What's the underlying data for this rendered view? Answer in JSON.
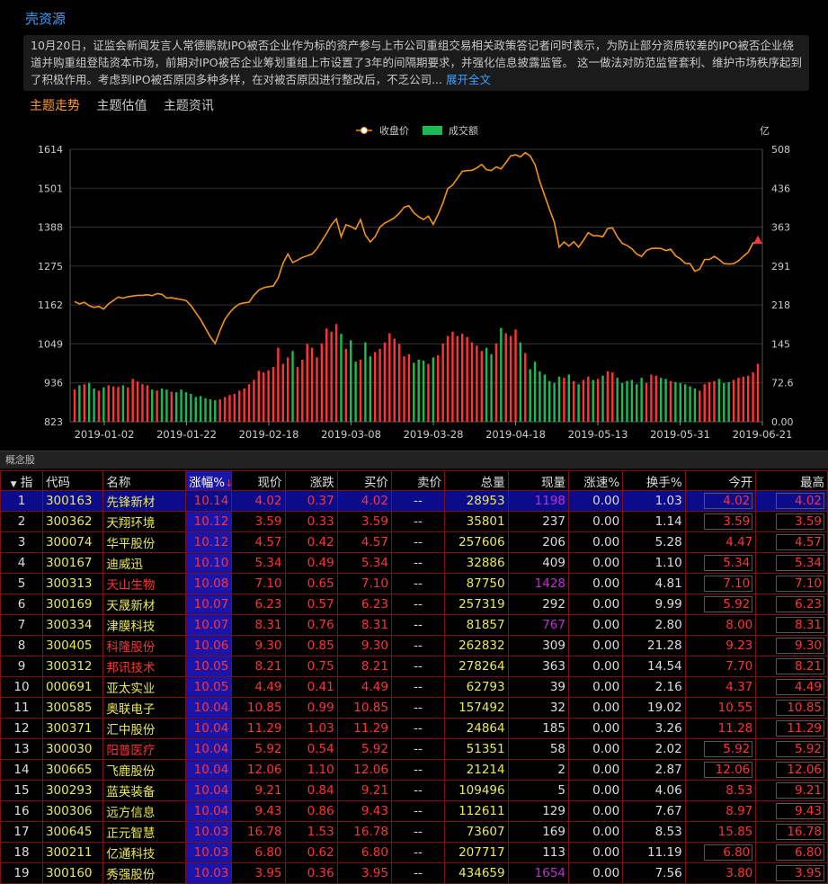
{
  "header": {
    "title": "壳资源",
    "news_text": "10月20日，证监会新闻发言人常德鹏就IPO被否企业作为标的资产参与上市公司重组交易相关政策答记者问时表示，为防止部分资质较差的IPO被否企业绕道并购重组登陆资本市场，前期对IPO被否企业筹划重组上市设置了3年的间隔期要求，并强化信息披露监管。 这一做法对防范监管套利、维护市场秩序起到了积极作用。考虑到IPO被否原因多种多样，在对被否原因进行整改后，不乏公司...",
    "news_more": "展开全文"
  },
  "tabs": [
    "主题走势",
    "主题估值",
    "主题资讯"
  ],
  "colors": {
    "price_line": "#f0921e",
    "up": "#ff3333",
    "down": "#1db954",
    "accent": "#3aa0ff"
  },
  "chart_data": {
    "type": "line",
    "legend": {
      "price": "收盘价",
      "volume": "成交额"
    },
    "y_left_ticks": [
      "1614",
      "1501",
      "1388",
      "1275",
      "1162",
      "1049",
      "936",
      "823"
    ],
    "y_right_unit": "亿",
    "y_right_ticks": [
      "508",
      "436",
      "363",
      "291",
      "218",
      "145",
      "72.6",
      "0.00"
    ],
    "x_ticks": [
      "2019-01-02",
      "2019-01-22",
      "2019-02-18",
      "2019-03-08",
      "2019-03-28",
      "2019-04-18",
      "2019-05-13",
      "2019-05-31",
      "2019-06-21"
    ],
    "ylim_price": [
      823,
      1614
    ],
    "ylim_volume": [
      0,
      508
    ],
    "price": [
      1172,
      1165,
      1170,
      1160,
      1155,
      1158,
      1150,
      1165,
      1175,
      1185,
      1182,
      1186,
      1188,
      1190,
      1190,
      1192,
      1189,
      1195,
      1193,
      1182,
      1183,
      1180,
      1178,
      1175,
      1160,
      1140,
      1120,
      1095,
      1070,
      1050,
      1088,
      1120,
      1140,
      1155,
      1165,
      1168,
      1170,
      1190,
      1205,
      1212,
      1215,
      1217,
      1240,
      1283,
      1310,
      1285,
      1292,
      1300,
      1305,
      1310,
      1325,
      1348,
      1370,
      1395,
      1412,
      1360,
      1395,
      1390,
      1382,
      1410,
      1365,
      1345,
      1360,
      1388,
      1400,
      1407,
      1415,
      1428,
      1446,
      1450,
      1430,
      1418,
      1410,
      1420,
      1396,
      1425,
      1458,
      1500,
      1510,
      1530,
      1550,
      1552,
      1553,
      1560,
      1570,
      1555,
      1552,
      1563,
      1557,
      1575,
      1595,
      1598,
      1592,
      1604,
      1595,
      1570,
      1520,
      1480,
      1440,
      1402,
      1330,
      1345,
      1333,
      1346,
      1330,
      1350,
      1372,
      1363,
      1363,
      1360,
      1384,
      1386,
      1360,
      1341,
      1335,
      1325,
      1310,
      1303,
      1320,
      1326,
      1327,
      1326,
      1320,
      1324,
      1305,
      1296,
      1283,
      1282,
      1260,
      1266,
      1294,
      1294,
      1303,
      1294,
      1282,
      1281,
      1282,
      1290,
      1303,
      1315,
      1342,
      1345
    ],
    "volume": [
      60,
      68,
      70,
      72,
      62,
      58,
      64,
      68,
      66,
      65,
      68,
      64,
      80,
      75,
      70,
      68,
      60,
      58,
      62,
      60,
      56,
      55,
      60,
      55,
      52,
      46,
      48,
      44,
      42,
      40,
      42,
      46,
      50,
      52,
      58,
      62,
      70,
      78,
      95,
      92,
      96,
      102,
      138,
      108,
      120,
      132,
      102,
      116,
      145,
      138,
      120,
      146,
      174,
      168,
      182,
      164,
      136,
      152,
      112,
      116,
      148,
      122,
      130,
      136,
      148,
      165,
      155,
      145,
      122,
      126,
      110,
      116,
      114,
      108,
      120,
      124,
      146,
      160,
      168,
      160,
      164,
      158,
      148,
      142,
      132,
      138,
      126,
      146,
      175,
      165,
      160,
      172,
      148,
      128,
      98,
      112,
      94,
      88,
      76,
      72,
      84,
      82,
      88,
      76,
      70,
      78,
      84,
      78,
      80,
      86,
      94,
      92,
      82,
      72,
      76,
      78,
      70,
      82,
      72,
      88,
      86,
      82,
      80,
      76,
      74,
      72,
      70,
      66,
      62,
      58,
      70,
      74,
      76,
      80,
      72,
      74,
      78,
      82,
      84,
      86,
      92,
      108
    ]
  },
  "section_label": "概念股",
  "table": {
    "headers": [
      "指",
      "代码",
      "名称",
      "涨幅%",
      "现价",
      "涨跌",
      "买价",
      "卖价",
      "总量",
      "现量",
      "涨速%",
      "换手%",
      "今开",
      "最高"
    ],
    "rows": [
      [
        "1",
        "300163",
        "先锋新材",
        "10.14",
        "4.02",
        "0.37",
        "4.02",
        "--",
        "28953",
        "1198",
        "0.00",
        "1.03",
        "4.02",
        "4.02"
      ],
      [
        "2",
        "300362",
        "天翔环境",
        "10.12",
        "3.59",
        "0.33",
        "3.59",
        "--",
        "35801",
        "237",
        "0.00",
        "1.14",
        "3.59",
        "3.59"
      ],
      [
        "3",
        "300074",
        "华平股份",
        "10.12",
        "4.57",
        "0.42",
        "4.57",
        "--",
        "257606",
        "206",
        "0.00",
        "5.28",
        "4.47",
        "4.57"
      ],
      [
        "4",
        "300167",
        "迪威迅",
        "10.10",
        "5.34",
        "0.49",
        "5.34",
        "--",
        "32886",
        "409",
        "0.00",
        "1.10",
        "5.34",
        "5.34"
      ],
      [
        "5",
        "300313",
        "天山生物",
        "10.08",
        "7.10",
        "0.65",
        "7.10",
        "--",
        "87750",
        "1428",
        "0.00",
        "4.81",
        "7.10",
        "7.10"
      ],
      [
        "6",
        "300169",
        "天晟新材",
        "10.07",
        "6.23",
        "0.57",
        "6.23",
        "--",
        "257319",
        "292",
        "0.00",
        "9.99",
        "5.92",
        "6.23"
      ],
      [
        "7",
        "300334",
        "津膜科技",
        "10.07",
        "8.31",
        "0.76",
        "8.31",
        "--",
        "81857",
        "767",
        "0.00",
        "2.80",
        "8.00",
        "8.31"
      ],
      [
        "8",
        "300405",
        "科隆股份",
        "10.06",
        "9.30",
        "0.85",
        "9.30",
        "--",
        "262832",
        "309",
        "0.00",
        "21.28",
        "9.23",
        "9.30"
      ],
      [
        "9",
        "300312",
        "邦讯技术",
        "10.05",
        "8.21",
        "0.75",
        "8.21",
        "--",
        "278264",
        "363",
        "0.00",
        "14.54",
        "7.70",
        "8.21"
      ],
      [
        "10",
        "000691",
        "亚太实业",
        "10.05",
        "4.49",
        "0.41",
        "4.49",
        "--",
        "62793",
        "39",
        "0.00",
        "2.16",
        "4.37",
        "4.49"
      ],
      [
        "11",
        "300585",
        "奥联电子",
        "10.04",
        "10.85",
        "0.99",
        "10.85",
        "--",
        "157492",
        "32",
        "0.00",
        "19.02",
        "10.55",
        "10.85"
      ],
      [
        "12",
        "300371",
        "汇中股份",
        "10.04",
        "11.29",
        "1.03",
        "11.29",
        "--",
        "24864",
        "185",
        "0.00",
        "3.26",
        "11.28",
        "11.29"
      ],
      [
        "13",
        "300030",
        "阳普医疗",
        "10.04",
        "5.92",
        "0.54",
        "5.92",
        "--",
        "51351",
        "58",
        "0.00",
        "2.02",
        "5.92",
        "5.92"
      ],
      [
        "14",
        "300665",
        "飞鹿股份",
        "10.04",
        "12.06",
        "1.10",
        "12.06",
        "--",
        "21214",
        "2",
        "0.00",
        "2.87",
        "12.06",
        "12.06"
      ],
      [
        "15",
        "300293",
        "蓝英装备",
        "10.04",
        "9.21",
        "0.84",
        "9.21",
        "--",
        "109496",
        "5",
        "0.00",
        "4.06",
        "8.53",
        "9.21"
      ],
      [
        "16",
        "300306",
        "远方信息",
        "10.04",
        "9.43",
        "0.86",
        "9.43",
        "--",
        "112611",
        "129",
        "0.00",
        "7.67",
        "8.97",
        "9.43"
      ],
      [
        "17",
        "300645",
        "正元智慧",
        "10.03",
        "16.78",
        "1.53",
        "16.78",
        "--",
        "73607",
        "169",
        "0.00",
        "8.53",
        "15.85",
        "16.78"
      ],
      [
        "18",
        "300211",
        "亿通科技",
        "10.03",
        "6.80",
        "0.62",
        "6.80",
        "--",
        "207717",
        "113",
        "0.00",
        "11.19",
        "6.80",
        "6.80"
      ],
      [
        "19",
        "300160",
        "秀强股份",
        "10.03",
        "3.95",
        "0.36",
        "3.95",
        "--",
        "434659",
        "1654",
        "0.00",
        "7.56",
        "3.80",
        "3.95"
      ]
    ],
    "red_names": [
      "天山生物",
      "科隆股份",
      "邦讯技术",
      "阳普医疗"
    ],
    "purple_volumes": [
      "1198",
      "1428",
      "767",
      "1654"
    ],
    "boxed_open": [
      "4.02",
      "3.59",
      "5.34",
      "7.10",
      "5.92",
      "12.06",
      "6.80"
    ]
  }
}
